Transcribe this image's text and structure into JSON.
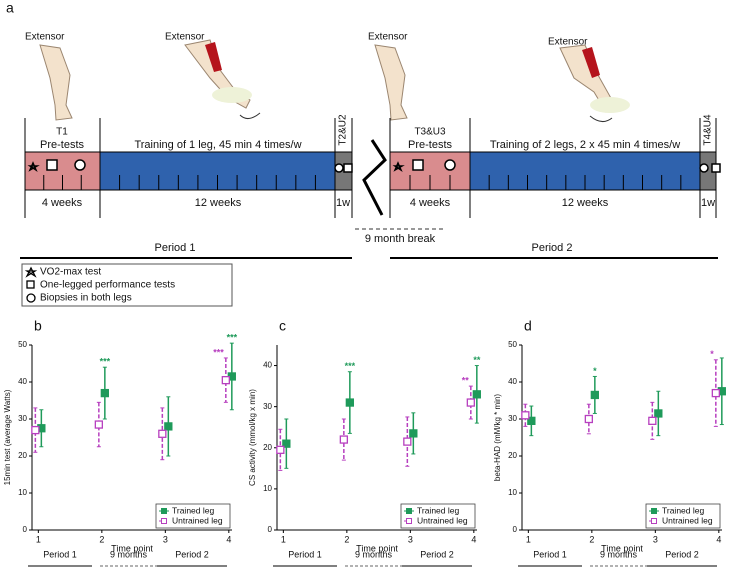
{
  "diagram": {
    "panel": "a",
    "extensor": [
      "Extensor",
      "Extensor",
      "Extensor",
      "Extensor"
    ],
    "timepoints": [
      "T1",
      "T2&U2",
      "T3&U3",
      "T4&U4"
    ],
    "pretests": [
      "Pre-tests",
      "Pre-tests"
    ],
    "training": [
      "Training of 1 leg, 45 min 4 times/w",
      "Training of 2 legs, 2 x 45 min 4 times/w"
    ],
    "durations": [
      "4 weeks",
      "12 weeks",
      "1w",
      "4 weeks",
      "12 weeks",
      "1w"
    ],
    "break": "9 month break",
    "periods": [
      "Period 1",
      "Period 2"
    ],
    "legend": [
      "VO2-max test",
      "One-legged performance tests",
      "Biopsies in both legs"
    ]
  },
  "chart_data": [
    {
      "type": "errorbar",
      "label": "b",
      "ylabel": "15min test (average Watts)",
      "xlabel": "Time point",
      "x": [
        1,
        2,
        3,
        4
      ],
      "xlim": [
        0.9,
        4.05
      ],
      "xticks": [
        1,
        2,
        3,
        4
      ],
      "ylim": [
        0,
        50
      ],
      "yticks": [
        0,
        10,
        20,
        30,
        40,
        50
      ],
      "series": [
        {
          "name": "Trained leg",
          "color": "#1f9a5a",
          "marker": "filled",
          "dashed": false,
          "values": [
            27.5,
            37,
            28,
            41.5
          ],
          "errors": [
            5,
            7,
            8,
            9
          ]
        },
        {
          "name": "Untrained leg",
          "color": "#b73fbf",
          "marker": "open",
          "dashed": true,
          "values": [
            27,
            28.5,
            26,
            40.5
          ],
          "errors": [
            6,
            6,
            7,
            6
          ]
        }
      ],
      "annotations": [
        {
          "text": "***",
          "series": 0,
          "point": 1
        },
        {
          "text": "***",
          "series": 1,
          "point": 3
        },
        {
          "text": "***",
          "series": 0,
          "point": 3
        }
      ],
      "legend": "lower right",
      "periods": [
        "Period 1",
        "9 months",
        "Period 2"
      ]
    },
    {
      "type": "errorbar",
      "label": "c",
      "ylabel": "CS activity (mmol/kg x min)",
      "xlabel": "Time point",
      "x": [
        1,
        2,
        3,
        4
      ],
      "xlim": [
        0.9,
        4.05
      ],
      "xticks": [
        1,
        2,
        3,
        4
      ],
      "ylim": [
        0,
        45
      ],
      "yticks": [
        0,
        10,
        20,
        30,
        40
      ],
      "series": [
        {
          "name": "Trained leg",
          "color": "#1f9a5a",
          "marker": "filled",
          "dashed": false,
          "values": [
            21,
            31,
            23.5,
            33
          ],
          "errors": [
            6,
            7.5,
            5,
            7
          ]
        },
        {
          "name": "Untrained leg",
          "color": "#b73fbf",
          "marker": "open",
          "dashed": true,
          "values": [
            19.5,
            22,
            21.5,
            31
          ],
          "errors": [
            5,
            5,
            6,
            4
          ]
        }
      ],
      "annotations": [
        {
          "text": "***",
          "series": 0,
          "point": 1
        },
        {
          "text": "**",
          "series": 1,
          "point": 3
        },
        {
          "text": "**",
          "series": 0,
          "point": 3
        }
      ],
      "legend": "lower right",
      "periods": [
        "Period 1",
        "9 months",
        "Period 2"
      ]
    },
    {
      "type": "errorbar",
      "label": "d",
      "ylabel": "beta-HAD (mM/kg * min)",
      "xlabel": "Time point",
      "x": [
        1,
        2,
        3,
        4
      ],
      "xlim": [
        0.9,
        4.05
      ],
      "xticks": [
        1,
        2,
        3,
        4
      ],
      "ylim": [
        0,
        50
      ],
      "yticks": [
        0,
        10,
        20,
        30,
        40,
        50
      ],
      "series": [
        {
          "name": "Trained leg",
          "color": "#1f9a5a",
          "marker": "filled",
          "dashed": false,
          "values": [
            29.5,
            36.5,
            31.5,
            37.5
          ],
          "errors": [
            4,
            5,
            6,
            9
          ]
        },
        {
          "name": "Untrained leg",
          "color": "#b73fbf",
          "marker": "open",
          "dashed": true,
          "values": [
            31,
            30,
            29.5,
            37
          ],
          "errors": [
            3,
            4,
            5,
            9
          ]
        }
      ],
      "annotations": [
        {
          "text": "*",
          "series": 0,
          "point": 1
        },
        {
          "text": "*",
          "series": 1,
          "point": 3
        }
      ],
      "legend": "lower right",
      "periods": [
        "Period 1",
        "9 months",
        "Period 2"
      ]
    }
  ]
}
